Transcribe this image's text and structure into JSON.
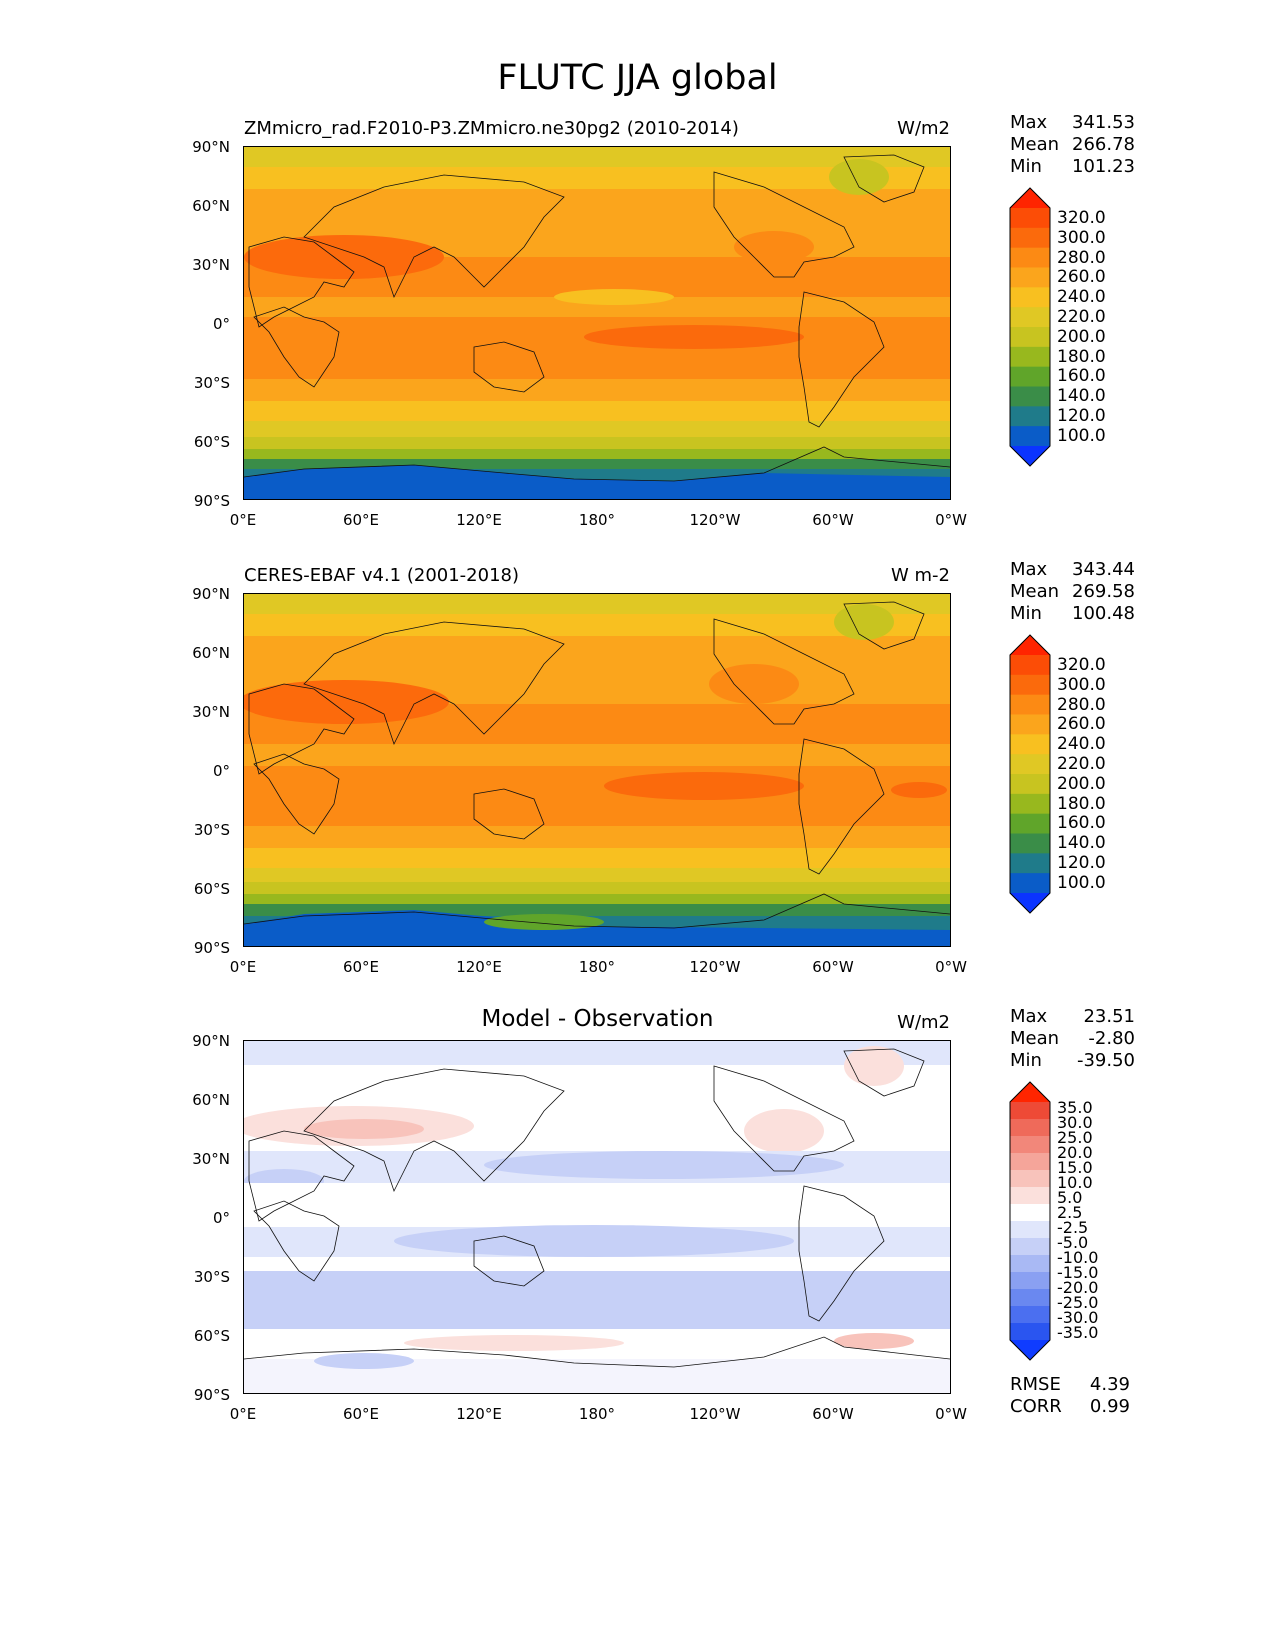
{
  "title": "FLUTC JJA global",
  "panels": [
    {
      "id": "model",
      "title_left": "ZMmicro_rad.F2010-P3.ZMmicro.ne30pg2 (2010-2014)",
      "title_center": "",
      "units": "W/m2",
      "stats": [
        {
          "label": "Max",
          "value": "341.53"
        },
        {
          "label": "Mean",
          "value": "266.78"
        },
        {
          "label": "Min",
          "value": "101.23"
        }
      ],
      "colorbar_labels": [
        "320.0",
        "300.0",
        "280.0",
        "260.0",
        "240.0",
        "220.0",
        "200.0",
        "180.0",
        "160.0",
        "140.0",
        "120.0",
        "100.0"
      ]
    },
    {
      "id": "obs",
      "title_left": "CERES-EBAF v4.1 (2001-2018)",
      "title_center": "",
      "units": "W m-2",
      "stats": [
        {
          "label": "Max",
          "value": "343.44"
        },
        {
          "label": "Mean",
          "value": "269.58"
        },
        {
          "label": "Min",
          "value": "100.48"
        }
      ],
      "colorbar_labels": [
        "320.0",
        "300.0",
        "280.0",
        "260.0",
        "240.0",
        "220.0",
        "200.0",
        "180.0",
        "160.0",
        "140.0",
        "120.0",
        "100.0"
      ]
    },
    {
      "id": "diff",
      "title_left": "",
      "title_center": "Model - Observation",
      "units": "W/m2",
      "stats": [
        {
          "label": "Max",
          "value": "23.51"
        },
        {
          "label": "Mean",
          "value": "-2.80"
        },
        {
          "label": "Min",
          "value": "-39.50"
        }
      ],
      "colorbar_labels": [
        "35.0",
        "30.0",
        "25.0",
        "20.0",
        "15.0",
        "10.0",
        "5.0",
        "2.5",
        "-2.5",
        "-5.0",
        "-10.0",
        "-15.0",
        "-20.0",
        "-25.0",
        "-30.0",
        "-35.0"
      ],
      "extra_stats": [
        {
          "label": "RMSE",
          "value": "4.39"
        },
        {
          "label": "CORR",
          "value": "0.99"
        }
      ]
    }
  ],
  "lat_labels": [
    "90°N",
    "60°N",
    "30°N",
    "0°",
    "30°S",
    "60°S",
    "90°S"
  ],
  "lon_labels": [
    "0°E",
    "60°E",
    "120°E",
    "180°",
    "120°W",
    "60°W",
    "0°W"
  ],
  "colors": {
    "abs_scale": [
      "#0b34ff",
      "#0a5cc8",
      "#1f7b8a",
      "#3a8d48",
      "#60a52a",
      "#98b81e",
      "#c8c420",
      "#e0c824",
      "#f8c020",
      "#fba51c",
      "#fc8a14",
      "#fb6a0c",
      "#fc4d06",
      "#ff2400"
    ],
    "diff_scale": [
      "#0f3cff",
      "#2a55f0",
      "#4b6ff0",
      "#6a88f0",
      "#8aa0f2",
      "#a9b9f4",
      "#c6d0f7",
      "#e0e6fb",
      "#ffffff",
      "#fbe0dc",
      "#f8c3bb",
      "#f5a59a",
      "#f2877a",
      "#ef6a5a",
      "#ee4a36",
      "#ff2500"
    ]
  }
}
